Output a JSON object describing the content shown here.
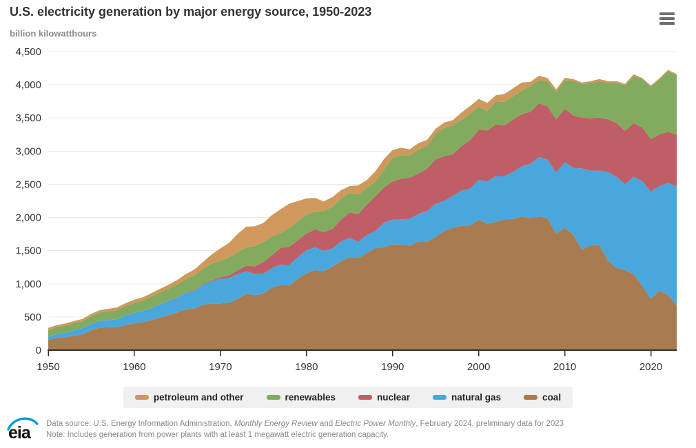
{
  "header": {
    "title": "U.S. electricity generation by major energy source, 1950-2023",
    "subtitle": "billion kilowatthours"
  },
  "menu": {
    "icon": "hamburger-menu-icon"
  },
  "chart_data": {
    "type": "area",
    "stacked": true,
    "title": "U.S. electricity generation by major energy source, 1950-2023",
    "ylabel": "billion kilowatthours",
    "xlabel": "",
    "ylim": [
      0,
      4500
    ],
    "ytick_interval": 500,
    "yticks": [
      0,
      500,
      1000,
      1500,
      2000,
      2500,
      3000,
      3500,
      4000,
      4500
    ],
    "xticks": [
      1950,
      1960,
      1970,
      1980,
      1990,
      2000,
      2010,
      2020
    ],
    "grid": "horizontal",
    "legend_position": "bottom",
    "stack_order": "bottom-to-top",
    "x": [
      1950,
      1951,
      1952,
      1953,
      1954,
      1955,
      1956,
      1957,
      1958,
      1959,
      1960,
      1961,
      1962,
      1963,
      1964,
      1965,
      1966,
      1967,
      1968,
      1969,
      1970,
      1971,
      1972,
      1973,
      1974,
      1975,
      1976,
      1977,
      1978,
      1979,
      1980,
      1981,
      1982,
      1983,
      1984,
      1985,
      1986,
      1987,
      1988,
      1989,
      1990,
      1991,
      1992,
      1993,
      1994,
      1995,
      1996,
      1997,
      1998,
      1999,
      2000,
      2001,
      2002,
      2003,
      2004,
      2005,
      2006,
      2007,
      2008,
      2009,
      2010,
      2011,
      2012,
      2013,
      2014,
      2015,
      2016,
      2017,
      2018,
      2019,
      2020,
      2021,
      2022,
      2023
    ],
    "series": [
      {
        "name": "coal",
        "color": "#a87c50",
        "values": [
          155,
          185,
          195,
          219,
          239,
          301,
          339,
          346,
          344,
          378,
          403,
          422,
          450,
          494,
          526,
          571,
          613,
          630,
          685,
          706,
          704,
          713,
          771,
          848,
          828,
          853,
          944,
          985,
          976,
          1075,
          1162,
          1203,
          1192,
          1259,
          1342,
          1402,
          1386,
          1464,
          1541,
          1554,
          1594,
          1591,
          1576,
          1639,
          1635,
          1709,
          1795,
          1845,
          1874,
          1881,
          1966,
          1904,
          1933,
          1974,
          1978,
          2013,
          1991,
          2016,
          1986,
          1756,
          1847,
          1733,
          1514,
          1581,
          1582,
          1352,
          1239,
          1206,
          1146,
          966,
          774,
          898,
          831,
          675
        ]
      },
      {
        "name": "natural gas",
        "color": "#4aa7db",
        "values": [
          45,
          57,
          68,
          80,
          94,
          95,
          104,
          108,
          120,
          147,
          158,
          169,
          184,
          202,
          220,
          222,
          251,
          265,
          304,
          333,
          373,
          374,
          376,
          341,
          320,
          300,
          295,
          306,
          305,
          329,
          346,
          346,
          305,
          274,
          297,
          292,
          249,
          273,
          253,
          367,
          373,
          381,
          404,
          415,
          460,
          496,
          455,
          480,
          531,
          556,
          601,
          639,
          691,
          650,
          710,
          761,
          816,
          897,
          883,
          921,
          988,
          1013,
          1225,
          1124,
          1126,
          1333,
          1378,
          1296,
          1468,
          1582,
          1617,
          1579,
          1687,
          1802
        ]
      },
      {
        "name": "nuclear",
        "color": "#bf5e66",
        "values": [
          0,
          0,
          0,
          0,
          0,
          0,
          0,
          0,
          0,
          0,
          1,
          2,
          2,
          3,
          3,
          4,
          6,
          8,
          13,
          14,
          22,
          38,
          54,
          83,
          114,
          173,
          191,
          251,
          276,
          255,
          251,
          273,
          283,
          294,
          328,
          384,
          414,
          455,
          527,
          529,
          577,
          613,
          619,
          610,
          640,
          673,
          675,
          629,
          674,
          728,
          754,
          769,
          780,
          764,
          789,
          782,
          787,
          806,
          806,
          799,
          807,
          790,
          769,
          789,
          797,
          797,
          806,
          805,
          807,
          809,
          790,
          778,
          772,
          775
        ]
      },
      {
        "name": "renewables",
        "color": "#83ab5f",
        "values": [
          101,
          105,
          109,
          107,
          107,
          116,
          124,
          130,
          140,
          138,
          150,
          155,
          172,
          172,
          181,
          197,
          199,
          225,
          226,
          254,
          251,
          272,
          276,
          275,
          304,
          303,
          287,
          225,
          287,
          285,
          285,
          268,
          315,
          336,
          324,
          295,
          298,
          253,
          226,
          272,
          357,
          355,
          340,
          358,
          344,
          385,
          426,
          437,
          394,
          398,
          356,
          292,
          343,
          355,
          351,
          357,
          385,
          352,
          381,
          417,
          427,
          520,
          502,
          534,
          551,
          546,
          609,
          687,
          713,
          728,
          792,
          826,
          913,
          894
        ]
      },
      {
        "name": "petroleum and other",
        "color": "#cf985c",
        "values": [
          34,
          29,
          30,
          33,
          32,
          37,
          36,
          40,
          40,
          47,
          48,
          49,
          52,
          54,
          57,
          65,
          79,
          89,
          104,
          138,
          184,
          220,
          274,
          314,
          301,
          289,
          320,
          358,
          365,
          304,
          246,
          206,
          147,
          144,
          120,
          100,
          137,
          118,
          149,
          158,
          117,
          111,
          89,
          100,
          91,
          75,
          82,
          78,
          110,
          118,
          111,
          125,
          95,
          119,
          121,
          122,
          64,
          66,
          46,
          39,
          37,
          30,
          23,
          27,
          30,
          28,
          24,
          21,
          25,
          18,
          17,
          19,
          23,
          16
        ]
      }
    ]
  },
  "legend": {
    "items": [
      {
        "label": "petroleum and other",
        "color": "#cf985c"
      },
      {
        "label": "renewables",
        "color": "#83ab5f"
      },
      {
        "label": "nuclear",
        "color": "#bf5e66"
      },
      {
        "label": "natural gas",
        "color": "#4aa7db"
      },
      {
        "label": "coal",
        "color": "#a87c50"
      }
    ]
  },
  "footer": {
    "logo_text": "eia",
    "source_pre": "Data source: U.S. Energy Information Administration, ",
    "source_italic1": "Monthly Energy Review",
    "source_mid": " and ",
    "source_italic2": "Electric Power Monthly",
    "source_post": ", February 2024, preliminary data for 2023",
    "note": "Note: Includes generation from power plants with at least 1 megawatt electric generation capacity."
  },
  "colors": {
    "gridline": "#e8e8e8",
    "axis": "#2e2e2e",
    "tick_label": "#333333",
    "legend_bg": "#f0f0f0",
    "logo_blue": "#0098d8"
  }
}
